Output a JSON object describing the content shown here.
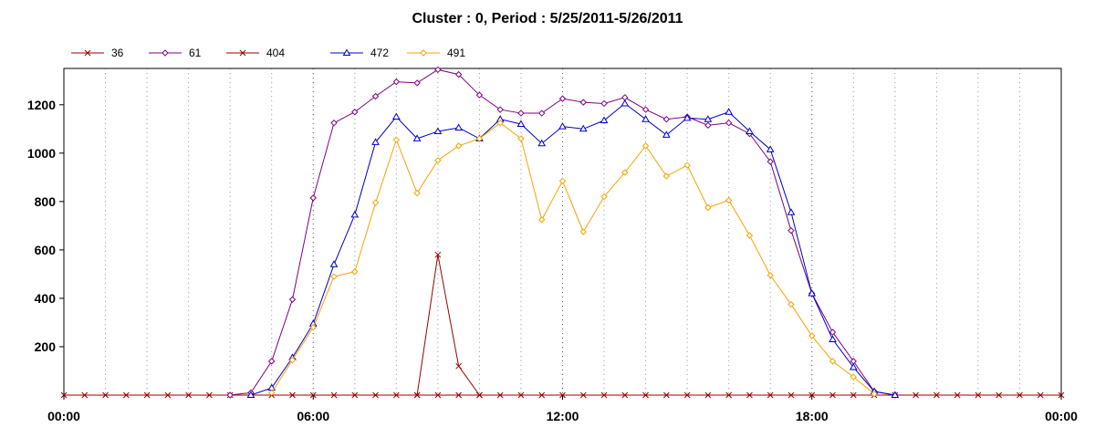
{
  "chart_data": {
    "type": "line",
    "title": "Cluster : 0, Period : 5/25/2011-5/26/2011",
    "xlabel": "",
    "ylabel": "",
    "x_tick_labels": [
      "00:00",
      "06:00",
      "12:00",
      "18:00",
      "00:00"
    ],
    "y_tick_labels": [
      "200",
      "400",
      "600",
      "800",
      "1000",
      "1200"
    ],
    "y_ticks": [
      200,
      400,
      600,
      800,
      1000,
      1200
    ],
    "xlim": [
      0,
      24
    ],
    "ylim": [
      0,
      1350
    ],
    "grid": true,
    "legend_position": "top-left",
    "series": [
      {
        "name": "36",
        "color": "#990000",
        "marker": "x",
        "x": [
          0,
          0.5,
          1,
          1.5,
          2,
          2.5,
          3,
          3.5,
          4,
          4.5,
          5,
          5.5,
          6,
          6.5,
          7,
          7.5,
          8,
          8.5,
          9,
          9.5,
          10,
          10.5,
          11,
          11.5,
          12,
          12.5,
          13,
          13.5,
          14,
          14.5,
          15,
          15.5,
          16,
          16.5,
          17,
          17.5,
          18,
          18.5,
          19,
          19.5,
          20,
          20.5,
          21,
          21.5,
          22,
          22.5,
          23,
          23.5,
          24
        ],
        "y": [
          0,
          0,
          0,
          0,
          0,
          0,
          0,
          0,
          0,
          0,
          0,
          0,
          0,
          0,
          0,
          0,
          0,
          0,
          0,
          0,
          0,
          0,
          0,
          0,
          0,
          0,
          0,
          0,
          0,
          0,
          0,
          0,
          0,
          0,
          0,
          0,
          0,
          0,
          0,
          0,
          0,
          0,
          0,
          0,
          0,
          0,
          0,
          0,
          0
        ]
      },
      {
        "name": "61",
        "color": "#800080",
        "marker": "diamond",
        "x": [
          4,
          4.5,
          5,
          5.5,
          6,
          6.5,
          7,
          7.5,
          8,
          8.5,
          9,
          9.5,
          10,
          10.5,
          11,
          11.5,
          12,
          12.5,
          13,
          13.5,
          14,
          14.5,
          15,
          15.5,
          16,
          16.5,
          17,
          17.5,
          18,
          18.5,
          19,
          19.5,
          20
        ],
        "y": [
          0,
          10,
          140,
          395,
          815,
          1125,
          1170,
          1235,
          1295,
          1290,
          1345,
          1325,
          1240,
          1180,
          1165,
          1165,
          1225,
          1210,
          1205,
          1230,
          1180,
          1140,
          1150,
          1115,
          1125,
          1080,
          965,
          680,
          420,
          260,
          140,
          15,
          0
        ]
      },
      {
        "name": "404",
        "color": "#990000",
        "marker": "x",
        "x": [
          8.5,
          9,
          9.5,
          10
        ],
        "y": [
          0,
          580,
          120,
          0
        ]
      },
      {
        "name": "472",
        "color": "#0000cc",
        "marker": "triangle",
        "x": [
          4.5,
          5,
          5.5,
          6,
          6.5,
          7,
          7.5,
          8,
          8.5,
          9,
          9.5,
          10,
          10.5,
          11,
          11.5,
          12,
          12.5,
          13,
          13.5,
          14,
          14.5,
          15,
          15.5,
          16,
          16.5,
          17,
          17.5,
          18,
          18.5,
          19,
          19.5,
          20
        ],
        "y": [
          0,
          30,
          155,
          295,
          540,
          745,
          1045,
          1150,
          1060,
          1090,
          1105,
          1060,
          1140,
          1120,
          1040,
          1110,
          1100,
          1135,
          1205,
          1140,
          1075,
          1145,
          1140,
          1170,
          1090,
          1015,
          755,
          420,
          230,
          115,
          15,
          0
        ]
      },
      {
        "name": "491",
        "color": "#f5a300",
        "marker": "diamond",
        "x": [
          5,
          5.5,
          6,
          6.5,
          7,
          7.5,
          8,
          8.5,
          9,
          9.5,
          10,
          10.5,
          11,
          11.5,
          12,
          12.5,
          13,
          13.5,
          14,
          14.5,
          15,
          15.5,
          16,
          16.5,
          17,
          17.5,
          18,
          18.5,
          19,
          19.5
        ],
        "y": [
          10,
          145,
          280,
          490,
          510,
          795,
          1055,
          835,
          970,
          1030,
          1060,
          1125,
          1060,
          725,
          885,
          675,
          820,
          920,
          1030,
          905,
          950,
          775,
          805,
          660,
          495,
          375,
          245,
          140,
          75,
          5
        ]
      }
    ]
  }
}
